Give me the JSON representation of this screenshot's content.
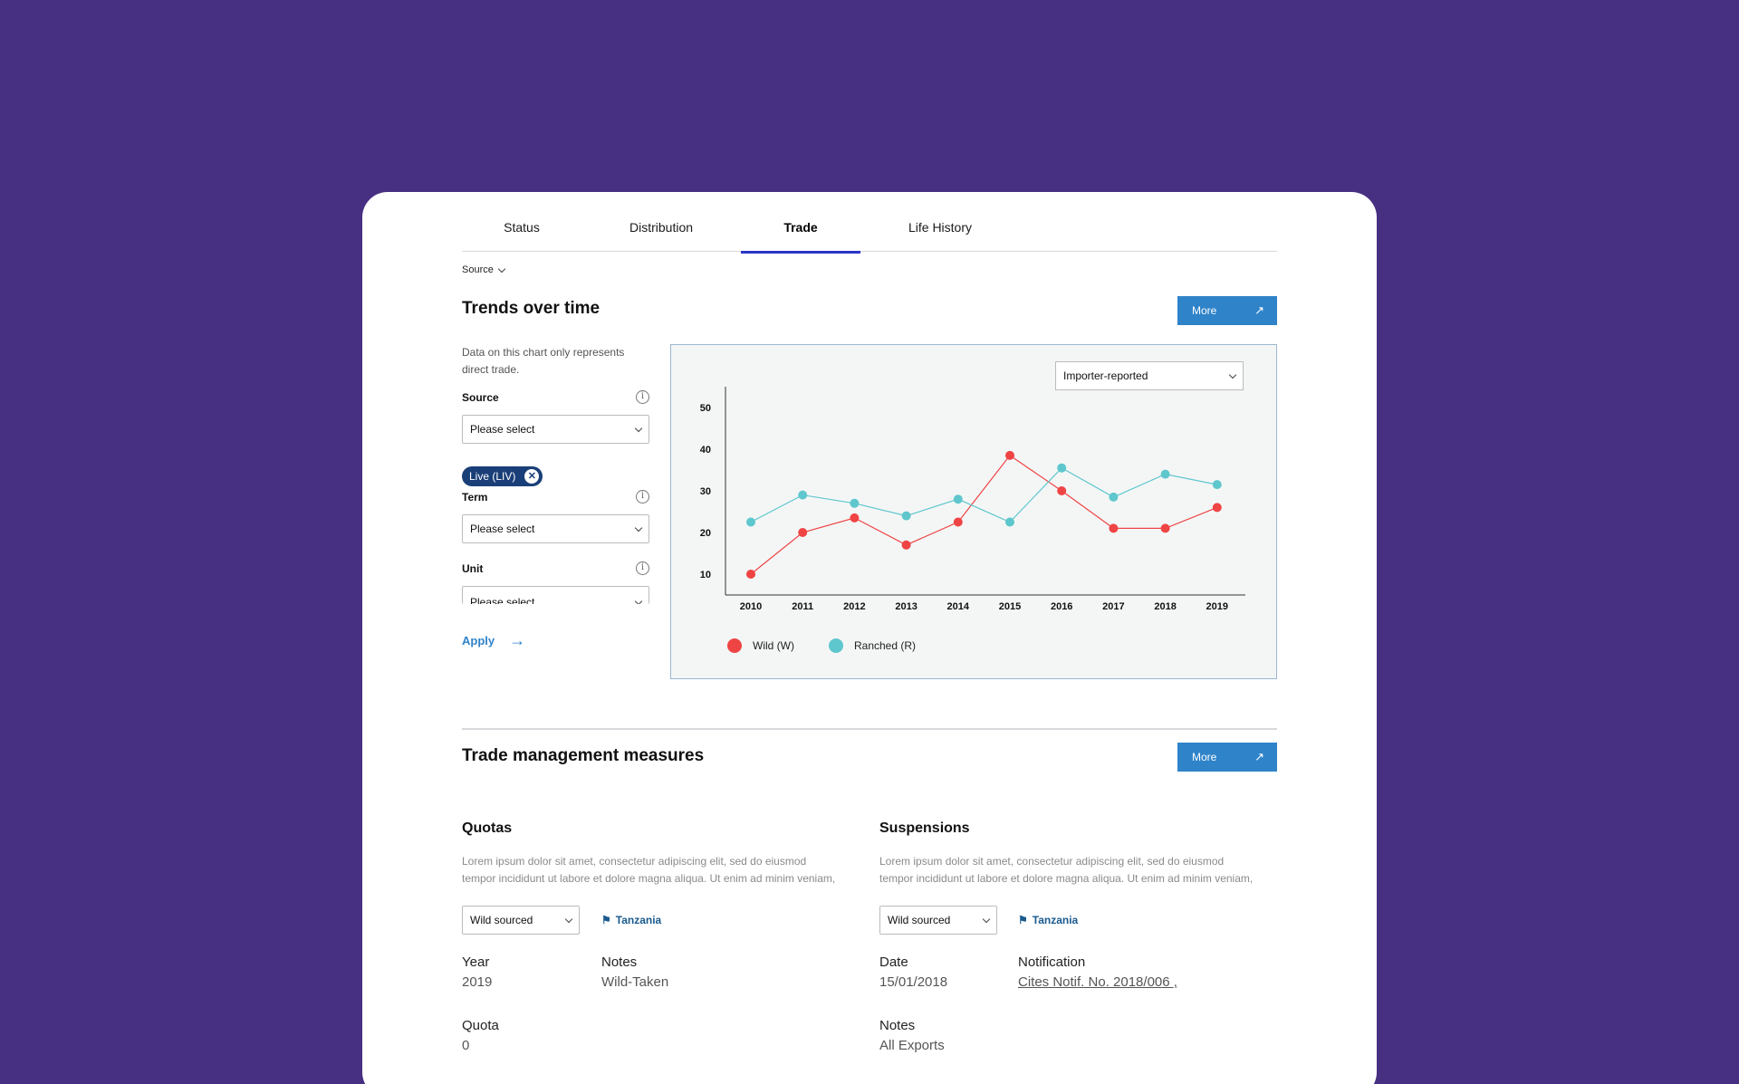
{
  "tabs": [
    "Status",
    "Distribution",
    "Trade",
    "Life History"
  ],
  "active_tab": "Trade",
  "source_toggle": "Source",
  "trends": {
    "title": "Trends over time",
    "more_label": "More",
    "note": "Data on this chart only represents direct trade.",
    "source_label": "Source",
    "source_placeholder": "Please select",
    "chip_label": "Live (LIV)",
    "term_label": "Term",
    "term_placeholder": "Please select",
    "unit_label": "Unit",
    "unit_placeholder": "Please select",
    "apply_label": "Apply",
    "reporter_select": "Importer-reported"
  },
  "chart_data": {
    "type": "line",
    "x": [
      "2010",
      "2011",
      "2012",
      "2013",
      "2014",
      "2015",
      "2016",
      "2017",
      "2018",
      "2019"
    ],
    "yticks": [
      10,
      20,
      30,
      40,
      50
    ],
    "ylim": [
      5,
      55
    ],
    "series": [
      {
        "name": "Wild (W)",
        "color": "#ef4444",
        "values": [
          10,
          20,
          23.5,
          17,
          22.5,
          38.5,
          30,
          21,
          21,
          26
        ]
      },
      {
        "name": "Ranched (R)",
        "color": "#5ec7cd",
        "values": [
          22.5,
          29,
          27,
          24,
          28,
          22.5,
          35.5,
          28.5,
          34,
          31.5
        ]
      }
    ]
  },
  "management": {
    "title": "Trade management measures",
    "more_label": "More",
    "quotas": {
      "title": "Quotas",
      "lorem_1": "Lorem ipsum dolor sit amet, consectetur adipiscing elit, sed do eiusmod",
      "lorem_2": "tempor incididunt ut labore et dolore magna aliqua. Ut enim ad minim veniam,",
      "select": "Wild sourced",
      "country": "Tanzania",
      "year_label": "Year",
      "year_value": "2019",
      "notes_label": "Notes",
      "notes_value": "Wild-Taken",
      "quota_label": "Quota",
      "quota_value": "0"
    },
    "suspensions": {
      "title": "Suspensions",
      "lorem_1": "Lorem ipsum dolor sit amet, consectetur adipiscing elit, sed do eiusmod",
      "lorem_2": "tempor incididunt ut labore et dolore magna aliqua. Ut enim ad minim veniam,",
      "select": "Wild sourced",
      "country": "Tanzania",
      "date_label": "Date",
      "date_value": "15/01/2018",
      "notification_label": "Notification",
      "notification_value": "Cites Notif. No. 2018/006 ,",
      "notes_label": "Notes",
      "notes_value": "All Exports"
    }
  }
}
